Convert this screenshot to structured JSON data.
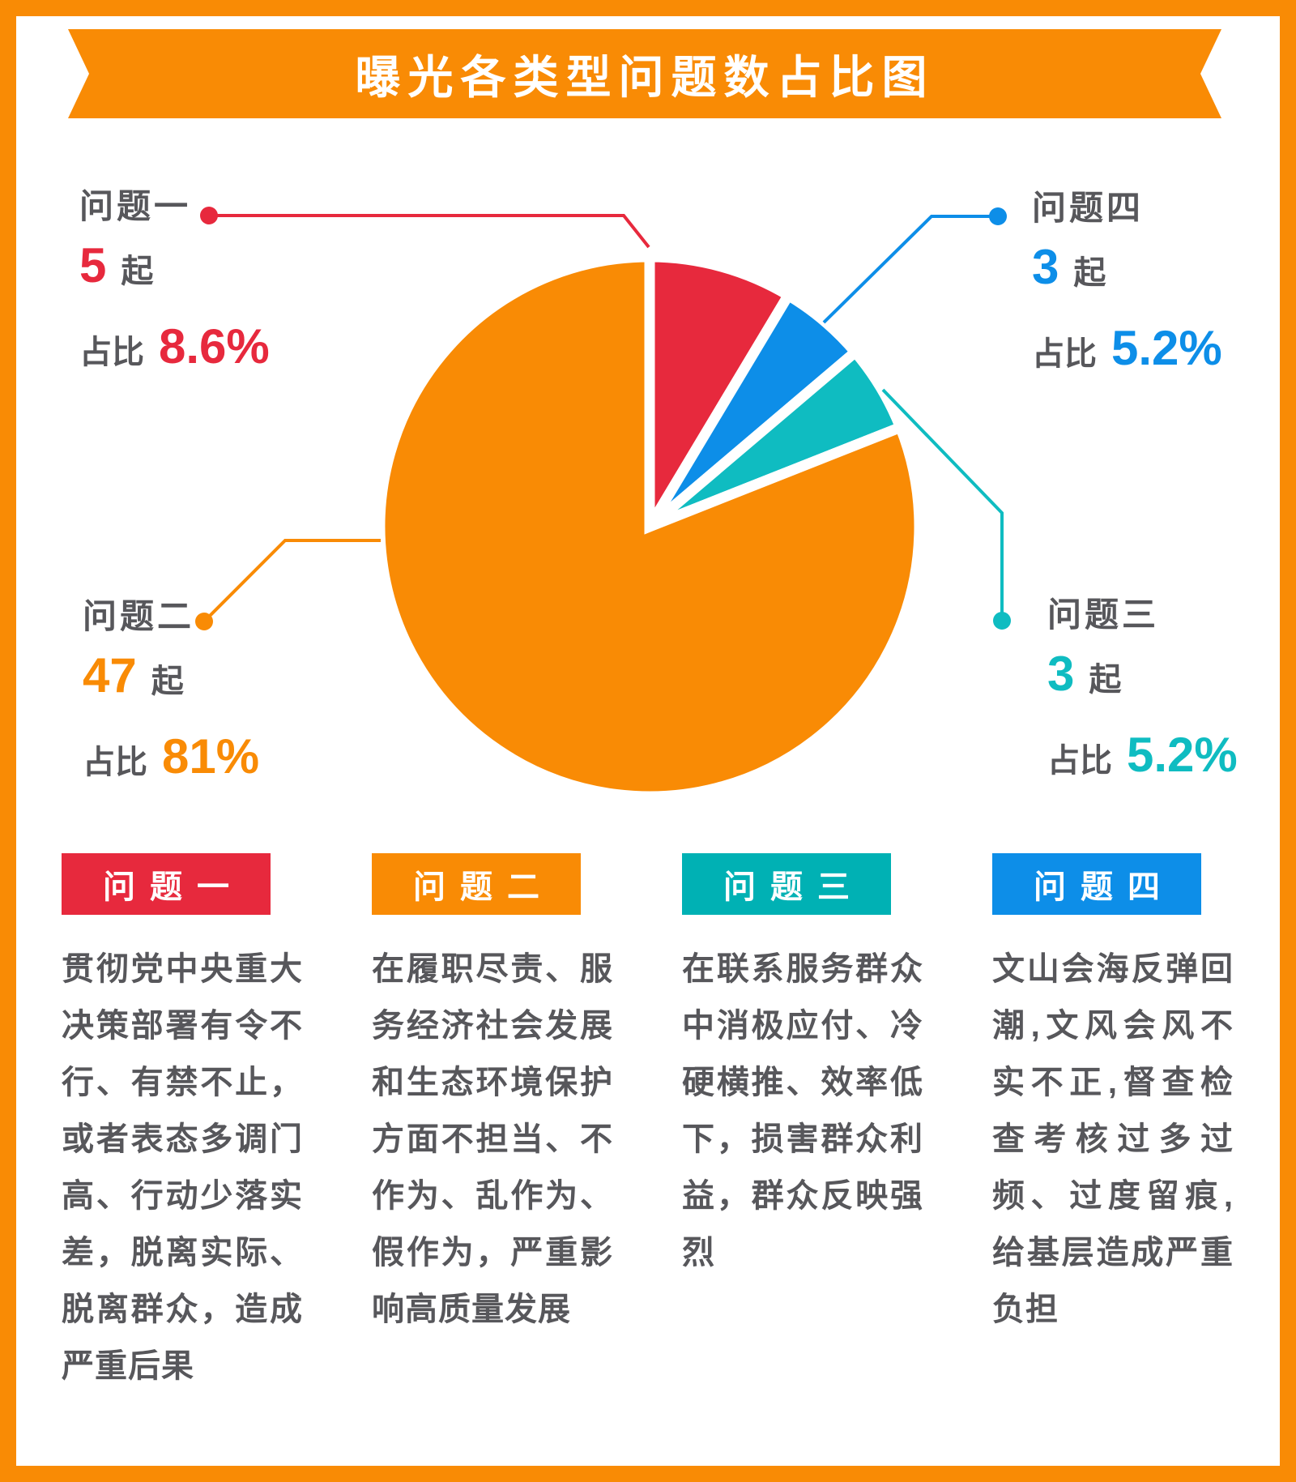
{
  "page": {
    "border_color": "#f98b05",
    "background": "#ffffff"
  },
  "title": {
    "text": "曝光各类型问题数占比图",
    "bg": "#f98b05",
    "color": "#ffffff"
  },
  "labels": {
    "unit": "起",
    "ratio": "占比"
  },
  "chart_data": {
    "type": "pie",
    "title": "曝光各类型问题数占比图",
    "clockwise_from_top": true,
    "gap_between_slices": true,
    "slices": [
      {
        "key": "problem-1",
        "label": "问题一",
        "count": "5",
        "pct": 8.6,
        "percent": "8.6%",
        "color": "#e7293d",
        "callout_position": "top-left"
      },
      {
        "key": "problem-4",
        "label": "问题四",
        "count": "3",
        "pct": 5.2,
        "percent": "5.2%",
        "color": "#0d8ee8",
        "callout_position": "top-right"
      },
      {
        "key": "problem-3",
        "label": "问题三",
        "count": "3",
        "pct": 5.2,
        "percent": "5.2%",
        "color": "#0fbcc1",
        "callout_position": "bottom-right"
      },
      {
        "key": "problem-2",
        "label": "问题二",
        "count": "47",
        "pct": 81,
        "percent": "81%",
        "color": "#f98b05",
        "callout_position": "bottom-left"
      }
    ]
  },
  "legend": [
    {
      "title": "问题一",
      "color": "#e7293d",
      "description": "贯彻党中央重大决策部署有令不行、有禁不止，或者表态多调门高、行动少落实差，脱离实际、脱离群众，造成严重后果"
    },
    {
      "title": "问题二",
      "color": "#f98b05",
      "description": "在履职尽责、服务经济社会发展和生态环境保护方面不担当、不作为、乱作为、假作为，严重影响高质量发展"
    },
    {
      "title": "问题三",
      "color": "#00b1b4",
      "description": "在联系服务群众中消极应付、冷硬横推、效率低下，损害群众利益，群众反映强烈"
    },
    {
      "title": "问题四",
      "color": "#0d8ee8",
      "description": "文山会海反弹回潮,文风会风不实不正,督查检查考核过多过频、过度留痕,给基层造成严重负担"
    }
  ]
}
